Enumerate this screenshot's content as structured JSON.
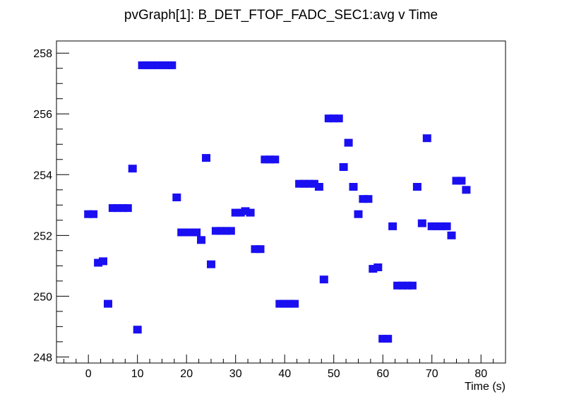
{
  "chart_data": {
    "type": "scatter",
    "title": "pvGraph[1]: B_DET_FTOF_FADC_SEC1:avg v Time",
    "xlabel": "Time (s)",
    "ylabel": "",
    "xlim": [
      -6.5,
      85
    ],
    "ylim": [
      247.8,
      258.4
    ],
    "x_major_ticks": [
      0,
      10,
      20,
      30,
      40,
      50,
      60,
      70,
      80
    ],
    "y_major_ticks": [
      248,
      250,
      252,
      254,
      256,
      258
    ],
    "x_tick_labels": [
      "0",
      "10",
      "20",
      "30",
      "40",
      "50",
      "60",
      "70",
      "80"
    ],
    "y_tick_labels": [
      "248",
      "250",
      "252",
      "254",
      "256",
      "258"
    ],
    "grid": false,
    "legend": "none",
    "marker_color": "#1a0ff0",
    "points": [
      {
        "x": 0,
        "y": 252.7
      },
      {
        "x": 1,
        "y": 252.7
      },
      {
        "x": 2,
        "y": 251.1
      },
      {
        "x": 3,
        "y": 251.15
      },
      {
        "x": 4,
        "y": 249.75
      },
      {
        "x": 5,
        "y": 252.9
      },
      {
        "x": 6,
        "y": 252.9
      },
      {
        "x": 7,
        "y": 252.9
      },
      {
        "x": 8,
        "y": 252.9
      },
      {
        "x": 9,
        "y": 254.2
      },
      {
        "x": 10,
        "y": 248.9
      },
      {
        "x": 11,
        "y": 257.6
      },
      {
        "x": 12,
        "y": 257.6
      },
      {
        "x": 13,
        "y": 257.6
      },
      {
        "x": 14,
        "y": 257.6
      },
      {
        "x": 15,
        "y": 257.6
      },
      {
        "x": 16,
        "y": 257.6
      },
      {
        "x": 17,
        "y": 257.6
      },
      {
        "x": 18,
        "y": 253.25
      },
      {
        "x": 19,
        "y": 252.1
      },
      {
        "x": 20,
        "y": 252.1
      },
      {
        "x": 21,
        "y": 252.1
      },
      {
        "x": 22,
        "y": 252.1
      },
      {
        "x": 23,
        "y": 251.85
      },
      {
        "x": 24,
        "y": 254.55
      },
      {
        "x": 25,
        "y": 251.05
      },
      {
        "x": 26,
        "y": 252.15
      },
      {
        "x": 27,
        "y": 252.15
      },
      {
        "x": 28,
        "y": 252.15
      },
      {
        "x": 29,
        "y": 252.15
      },
      {
        "x": 30,
        "y": 252.75
      },
      {
        "x": 31,
        "y": 252.75
      },
      {
        "x": 32,
        "y": 252.8
      },
      {
        "x": 33,
        "y": 252.75
      },
      {
        "x": 34,
        "y": 251.55
      },
      {
        "x": 35,
        "y": 251.55
      },
      {
        "x": 36,
        "y": 254.5
      },
      {
        "x": 37,
        "y": 254.5
      },
      {
        "x": 38,
        "y": 254.5
      },
      {
        "x": 39,
        "y": 249.75
      },
      {
        "x": 40,
        "y": 249.75
      },
      {
        "x": 41,
        "y": 249.75
      },
      {
        "x": 42,
        "y": 249.75
      },
      {
        "x": 43,
        "y": 253.7
      },
      {
        "x": 44,
        "y": 253.7
      },
      {
        "x": 45,
        "y": 253.7
      },
      {
        "x": 46,
        "y": 253.7
      },
      {
        "x": 47,
        "y": 253.6
      },
      {
        "x": 48,
        "y": 250.55
      },
      {
        "x": 49,
        "y": 255.85
      },
      {
        "x": 50,
        "y": 255.85
      },
      {
        "x": 51,
        "y": 255.85
      },
      {
        "x": 52,
        "y": 254.25
      },
      {
        "x": 53,
        "y": 255.05
      },
      {
        "x": 54,
        "y": 253.6
      },
      {
        "x": 55,
        "y": 252.7
      },
      {
        "x": 56,
        "y": 253.2
      },
      {
        "x": 57,
        "y": 253.2
      },
      {
        "x": 58,
        "y": 250.9
      },
      {
        "x": 59,
        "y": 250.95
      },
      {
        "x": 60,
        "y": 248.6
      },
      {
        "x": 61,
        "y": 248.6
      },
      {
        "x": 62,
        "y": 252.3
      },
      {
        "x": 63,
        "y": 250.35
      },
      {
        "x": 64,
        "y": 250.35
      },
      {
        "x": 65,
        "y": 250.35
      },
      {
        "x": 66,
        "y": 250.35
      },
      {
        "x": 67,
        "y": 253.6
      },
      {
        "x": 68,
        "y": 252.4
      },
      {
        "x": 69,
        "y": 255.2
      },
      {
        "x": 70,
        "y": 252.3
      },
      {
        "x": 71,
        "y": 252.3
      },
      {
        "x": 72,
        "y": 252.3
      },
      {
        "x": 73,
        "y": 252.3
      },
      {
        "x": 74,
        "y": 252.0
      },
      {
        "x": 75,
        "y": 253.8
      },
      {
        "x": 76,
        "y": 253.8
      },
      {
        "x": 77,
        "y": 253.5
      }
    ]
  }
}
